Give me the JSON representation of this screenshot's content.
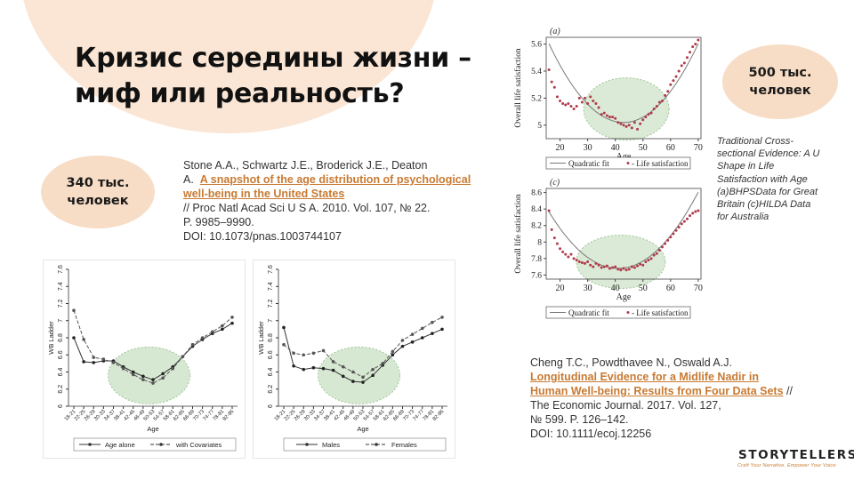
{
  "title": {
    "line1": "Кризис середины жизни –",
    "line2": "миф или реальность?"
  },
  "badges": {
    "left": {
      "line1": "340 тыс.",
      "line2": "человек"
    },
    "right": {
      "line1": "500 тыс.",
      "line2": "человек"
    }
  },
  "ref1": {
    "authors": "Stone A.A., Schwartz J.E., Broderick J.E., Deaton",
    "authors_end": "A.",
    "link": "A snapshot of the age distribution of psychological well-being in the United States",
    "journal": "// Proc Natl Acad Sci U S A. 2010. Vol. 107, № 22.",
    "pages": "P. 9985–9990.",
    "doi": "DOI: 10.1073/pnas.1003744107"
  },
  "ref2": {
    "authors": "Cheng T.C., Powdthavee N., Oswald A.J.",
    "link": "Longitudinal Evidence for a Midlife Nadir in Human Well-being: Results from Four Data Sets",
    "journal": "// The Economic Journal. 2017. Vol. 127,",
    "pages": "№ 599. P. 126–142.",
    "doi": "DOI: 10.1111/ecoj.12256"
  },
  "caption": "Traditional Cross-sectional Evidence: A U Shape in Life Satisfaction with Age (a)BHPSData for Great Britain (c)HILDA Data for Australia",
  "logo": {
    "name": "STORYTELLERS",
    "tagline": "Craft Your Narrative. Empower Your Voice"
  },
  "colors": {
    "accent": "#c87a32",
    "badge": "#f7ddc6",
    "highlight": "#bcd9b4"
  },
  "chart_data": [
    {
      "type": "line",
      "id": "chart-a",
      "panel_label": "(a)",
      "xlabel": "Age",
      "ylabel": "Overall life satisfaction",
      "xlim": [
        15,
        71
      ],
      "ylim": [
        4.9,
        5.65
      ],
      "xticks": [
        20,
        30,
        40,
        50,
        60,
        70
      ],
      "yticks": [
        5,
        5.2,
        5.4,
        5.6
      ],
      "ytick_labels": [
        "5",
        "5.2",
        "5.4",
        "5.6"
      ],
      "legend": [
        "Quadratic fit",
        "Life satisfaction"
      ],
      "quadratic": {
        "a": 0.0008,
        "h": 43,
        "k": 5.02
      },
      "points": [
        [
          16,
          5.41
        ],
        [
          17,
          5.32
        ],
        [
          18,
          5.28
        ],
        [
          19,
          5.21
        ],
        [
          20,
          5.18
        ],
        [
          21,
          5.16
        ],
        [
          22,
          5.15
        ],
        [
          23,
          5.16
        ],
        [
          24,
          5.14
        ],
        [
          25,
          5.12
        ],
        [
          26,
          5.14
        ],
        [
          27,
          5.2
        ],
        [
          28,
          5.17
        ],
        [
          29,
          5.2
        ],
        [
          30,
          5.16
        ],
        [
          31,
          5.21
        ],
        [
          32,
          5.18
        ],
        [
          33,
          5.16
        ],
        [
          34,
          5.13
        ],
        [
          35,
          5.08
        ],
        [
          36,
          5.09
        ],
        [
          37,
          5.07
        ],
        [
          38,
          5.06
        ],
        [
          39,
          5.06
        ],
        [
          40,
          5.05
        ],
        [
          41,
          5.02
        ],
        [
          42,
          5.01
        ],
        [
          43,
          5.0
        ],
        [
          44,
          4.99
        ],
        [
          45,
          5.0
        ],
        [
          46,
          4.98
        ],
        [
          47,
          5.02
        ],
        [
          48,
          4.97
        ],
        [
          49,
          5.01
        ],
        [
          50,
          5.04
        ],
        [
          51,
          5.06
        ],
        [
          52,
          5.08
        ],
        [
          53,
          5.09
        ],
        [
          54,
          5.12
        ],
        [
          55,
          5.14
        ],
        [
          56,
          5.17
        ],
        [
          57,
          5.18
        ],
        [
          58,
          5.22
        ],
        [
          59,
          5.25
        ],
        [
          60,
          5.3
        ],
        [
          61,
          5.33
        ],
        [
          62,
          5.36
        ],
        [
          63,
          5.4
        ],
        [
          64,
          5.44
        ],
        [
          65,
          5.46
        ],
        [
          66,
          5.5
        ],
        [
          67,
          5.54
        ],
        [
          68,
          5.58
        ],
        [
          69,
          5.6
        ],
        [
          70,
          5.63
        ]
      ]
    },
    {
      "type": "line",
      "id": "chart-c",
      "panel_label": "(c)",
      "xlabel": "Age",
      "ylabel": "Overall life satisfaction",
      "xlim": [
        15,
        71
      ],
      "ylim": [
        7.55,
        8.65
      ],
      "xticks": [
        20,
        30,
        40,
        50,
        60,
        70
      ],
      "yticks": [
        7.6,
        7.8,
        8,
        8.2,
        8.4,
        8.6
      ],
      "ytick_labels": [
        "7.6",
        "7.8",
        "8",
        "8.2",
        "8.4",
        "8.6"
      ],
      "legend": [
        "Quadratic fit",
        "Life satisfaction"
      ],
      "quadratic": {
        "a": 0.0011,
        "h": 41,
        "k": 7.68
      },
      "points": [
        [
          16,
          8.38
        ],
        [
          17,
          8.15
        ],
        [
          18,
          8.05
        ],
        [
          19,
          7.98
        ],
        [
          20,
          7.92
        ],
        [
          21,
          7.88
        ],
        [
          22,
          7.85
        ],
        [
          23,
          7.82
        ],
        [
          24,
          7.85
        ],
        [
          25,
          7.8
        ],
        [
          26,
          7.78
        ],
        [
          27,
          7.76
        ],
        [
          28,
          7.75
        ],
        [
          29,
          7.74
        ],
        [
          30,
          7.76
        ],
        [
          31,
          7.72
        ],
        [
          32,
          7.7
        ],
        [
          33,
          7.74
        ],
        [
          34,
          7.72
        ],
        [
          35,
          7.69
        ],
        [
          36,
          7.7
        ],
        [
          37,
          7.71
        ],
        [
          38,
          7.68
        ],
        [
          39,
          7.69
        ],
        [
          40,
          7.7
        ],
        [
          41,
          7.67
        ],
        [
          42,
          7.66
        ],
        [
          43,
          7.68
        ],
        [
          44,
          7.66
        ],
        [
          45,
          7.67
        ],
        [
          46,
          7.7
        ],
        [
          47,
          7.69
        ],
        [
          48,
          7.71
        ],
        [
          49,
          7.73
        ],
        [
          50,
          7.72
        ],
        [
          51,
          7.76
        ],
        [
          52,
          7.78
        ],
        [
          53,
          7.8
        ],
        [
          54,
          7.84
        ],
        [
          55,
          7.86
        ],
        [
          56,
          7.9
        ],
        [
          57,
          7.94
        ],
        [
          58,
          7.98
        ],
        [
          59,
          8.02
        ],
        [
          60,
          8.06
        ],
        [
          61,
          8.1
        ],
        [
          62,
          8.14
        ],
        [
          63,
          8.18
        ],
        [
          64,
          8.22
        ],
        [
          65,
          8.25
        ],
        [
          66,
          8.28
        ],
        [
          67,
          8.32
        ],
        [
          68,
          8.35
        ],
        [
          69,
          8.37
        ],
        [
          70,
          8.38
        ]
      ]
    },
    {
      "type": "line",
      "id": "chart-ladder",
      "xlabel": "Age",
      "ylabel": "WB Ladder",
      "ylim": [
        6,
        7.6
      ],
      "yticks": [
        6,
        6.2,
        6.4,
        6.6,
        6.8,
        7,
        7.2,
        7.4,
        7.6
      ],
      "ytick_labels": [
        "6",
        "6.2",
        "6.4",
        "6.6",
        "6.8",
        "7",
        "7.2",
        "7.4",
        "7.6"
      ],
      "categories": [
        "18-21",
        "22-25",
        "26-29",
        "30-33",
        "34-37",
        "38-41",
        "42-45",
        "46-49",
        "50-53",
        "54-57",
        "58-61",
        "62-65",
        "66-69",
        "70-73",
        "74-77",
        "78-81",
        "82-85"
      ],
      "series": [
        {
          "name": "Age alone",
          "style": "solid",
          "values": [
            6.8,
            6.52,
            6.51,
            6.53,
            6.53,
            6.46,
            6.4,
            6.35,
            6.31,
            6.38,
            6.46,
            6.58,
            6.7,
            6.78,
            6.85,
            6.9,
            6.97
          ]
        },
        {
          "name": "with Covariates",
          "style": "dashed",
          "values": [
            7.12,
            6.78,
            6.57,
            6.55,
            6.51,
            6.44,
            6.37,
            6.31,
            6.27,
            6.33,
            6.44,
            6.58,
            6.72,
            6.8,
            6.87,
            6.94,
            7.04
          ]
        }
      ]
    },
    {
      "type": "line",
      "id": "chart-gender",
      "xlabel": "Age",
      "ylabel": "WB Ladder",
      "ylim": [
        6,
        7.6
      ],
      "yticks": [
        6,
        6.2,
        6.4,
        6.6,
        6.8,
        7,
        7.2,
        7.4,
        7.6
      ],
      "ytick_labels": [
        "6",
        "6.2",
        "6.4",
        "6.6",
        "6.8",
        "7",
        "7.2",
        "7.4",
        "7.6"
      ],
      "categories": [
        "18-21",
        "22-25",
        "26-29",
        "30-33",
        "34-37",
        "38-41",
        "42-45",
        "46-49",
        "50-53",
        "54-57",
        "58-61",
        "62-65",
        "66-69",
        "70-73",
        "74-77",
        "78-81",
        "82-85"
      ],
      "series": [
        {
          "name": "Males",
          "style": "solid",
          "values": [
            6.92,
            6.47,
            6.43,
            6.45,
            6.44,
            6.42,
            6.35,
            6.29,
            6.28,
            6.36,
            6.48,
            6.6,
            6.7,
            6.75,
            6.8,
            6.85,
            6.9
          ]
        },
        {
          "name": "Females",
          "style": "dashed",
          "values": [
            6.72,
            6.62,
            6.6,
            6.62,
            6.65,
            6.52,
            6.46,
            6.4,
            6.34,
            6.43,
            6.5,
            6.64,
            6.77,
            6.84,
            6.91,
            6.98,
            7.04
          ]
        }
      ]
    }
  ]
}
